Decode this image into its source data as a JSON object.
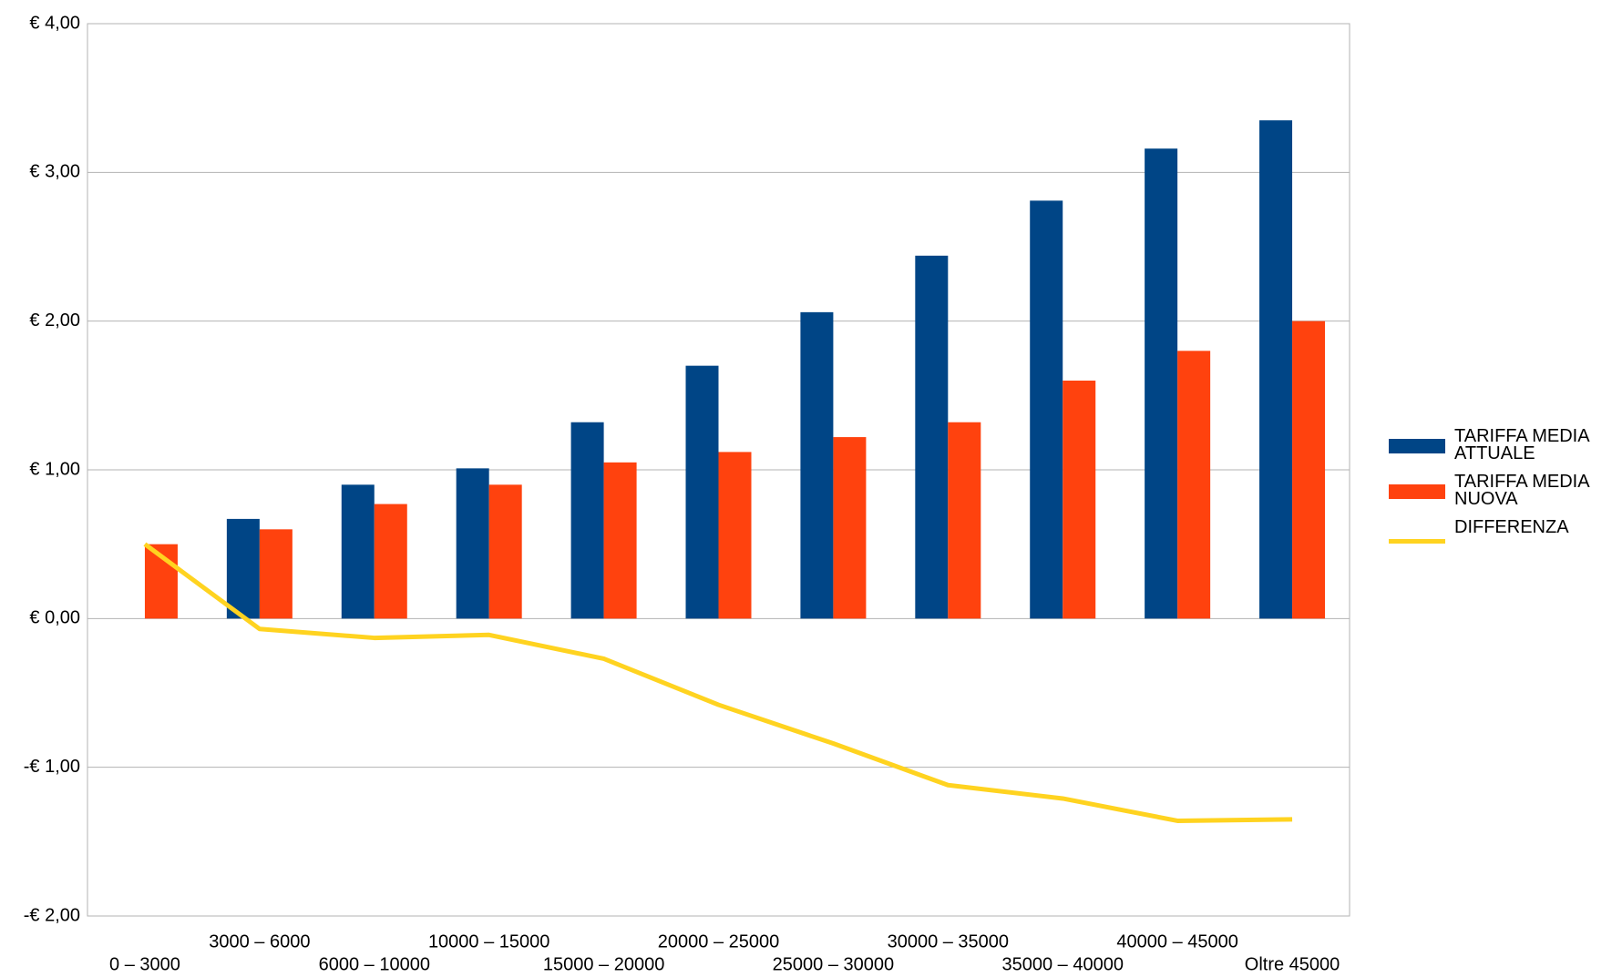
{
  "chart_data": {
    "type": "bar",
    "categories": [
      "0 – 3000",
      "3000 – 6000",
      "6000 – 10000",
      "10000 – 15000",
      "15000 – 20000",
      "20000 – 25000",
      "25000 – 30000",
      "30000 – 35000",
      "35000 – 40000",
      "40000 – 45000",
      "Oltre 45000"
    ],
    "series": [
      {
        "name": "TARIFFA MEDIA ATTUALE",
        "type": "bar",
        "color": "#004586",
        "values": [
          0,
          0.67,
          0.9,
          1.01,
          1.32,
          1.7,
          2.06,
          2.44,
          2.81,
          3.16,
          3.35
        ]
      },
      {
        "name": "TARIFFA MEDIA NUOVA",
        "type": "bar",
        "color": "#ff420e",
        "values": [
          0.5,
          0.6,
          0.77,
          0.9,
          1.05,
          1.12,
          1.22,
          1.32,
          1.6,
          1.8,
          2.0
        ]
      },
      {
        "name": "DIFFERENZA",
        "type": "line",
        "color": "#ffd320",
        "values": [
          0.5,
          -0.07,
          -0.13,
          -0.11,
          -0.27,
          -0.58,
          -0.84,
          -1.12,
          -1.21,
          -1.36,
          -1.35
        ]
      }
    ],
    "ylim": [
      -2,
      4
    ],
    "yticks": [
      {
        "value": -2,
        "label": "-€ 2,00"
      },
      {
        "value": -1,
        "label": "-€ 1,00"
      },
      {
        "value": 0,
        "label": "€ 0,00"
      },
      {
        "value": 1,
        "label": "€ 1,00"
      },
      {
        "value": 2,
        "label": "€ 2,00"
      },
      {
        "value": 3,
        "label": "€ 3,00"
      },
      {
        "value": 4,
        "label": "€ 4,00"
      }
    ],
    "negative_tick_color": "#ff0000",
    "grid": true,
    "legend": "right"
  }
}
